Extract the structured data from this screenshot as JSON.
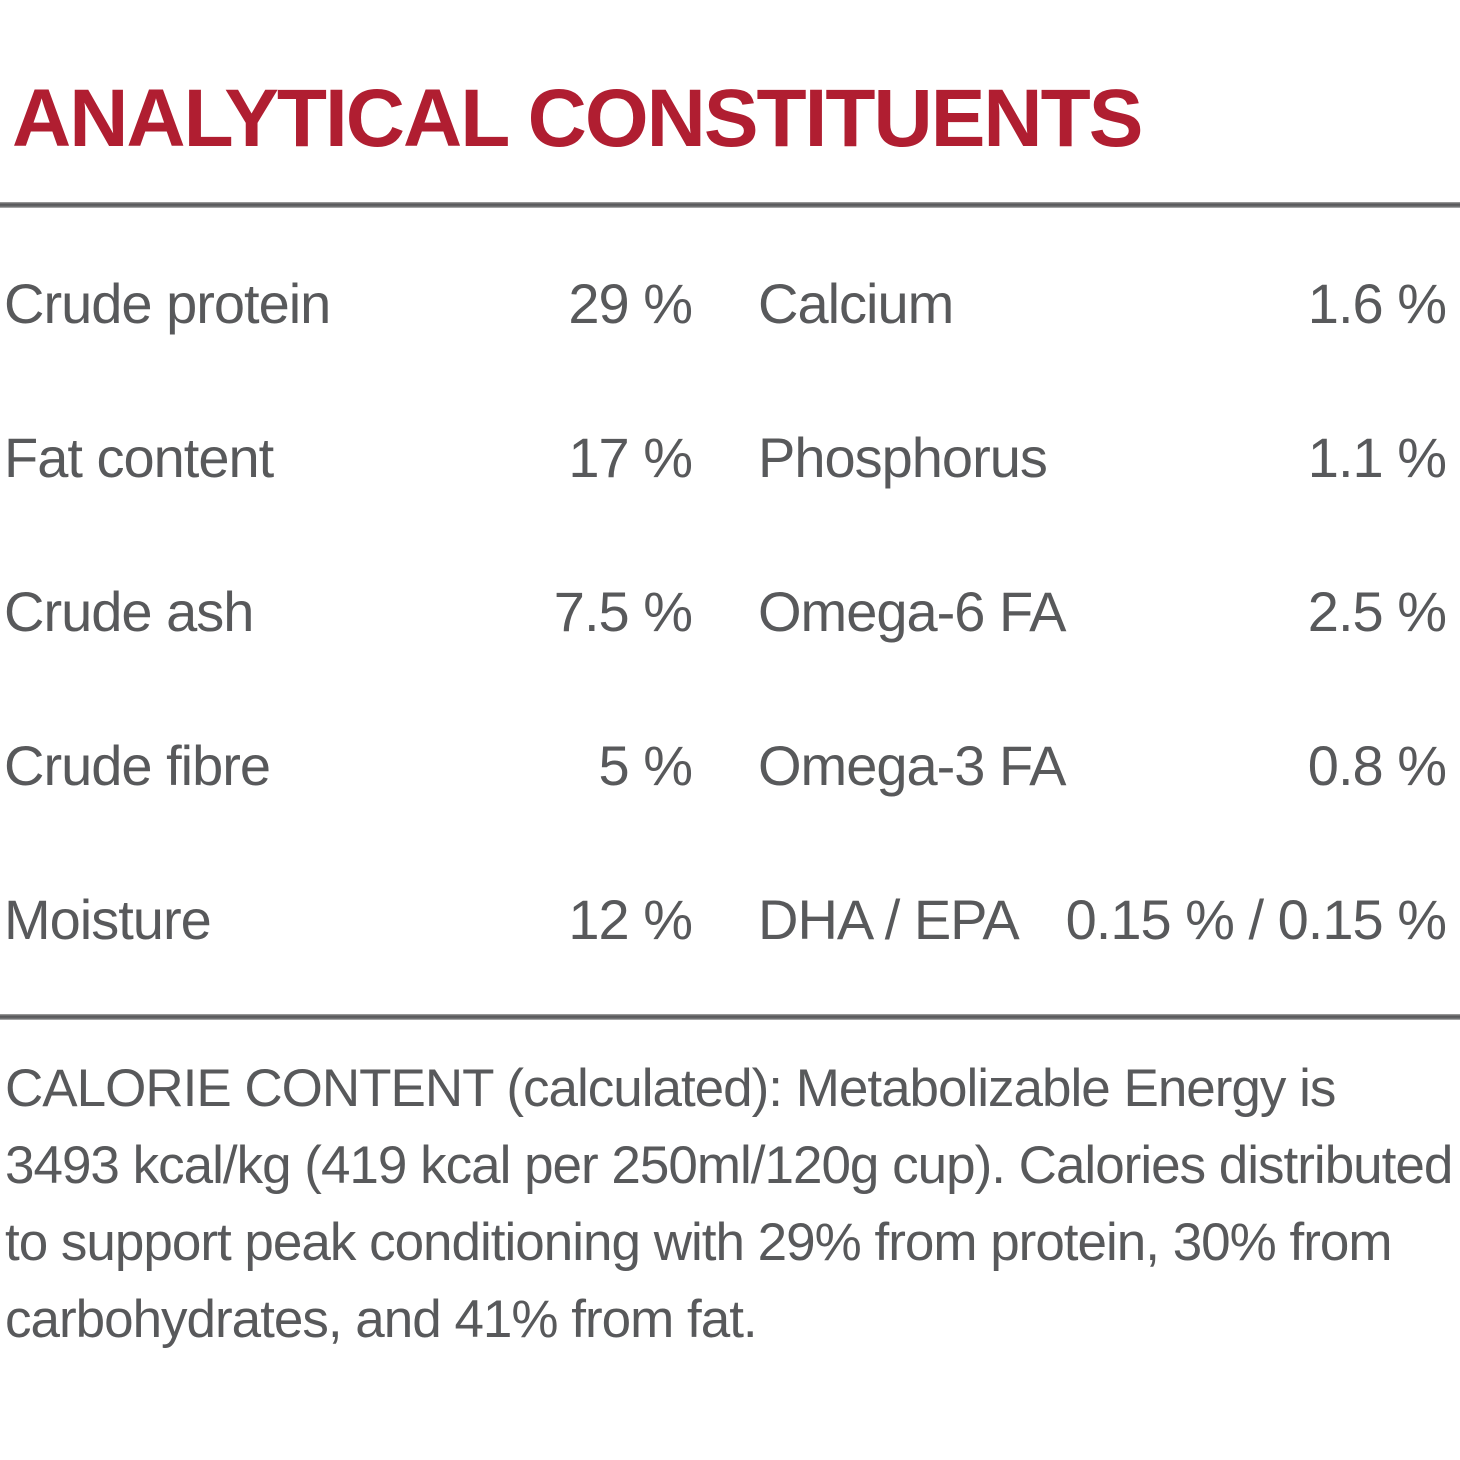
{
  "title": "ANALYTICAL CONSTITUENTS",
  "colors": {
    "accent_red": "#b01e31",
    "body_text": "#58595b",
    "divider_gray": "#636466",
    "background": "#ffffff"
  },
  "constituents": {
    "left": [
      {
        "label": "Crude protein",
        "value": "29 %"
      },
      {
        "label": "Fat content",
        "value": "17 %"
      },
      {
        "label": "Crude ash",
        "value": "7.5 %"
      },
      {
        "label": "Crude fibre",
        "value": "5 %"
      },
      {
        "label": "Moisture",
        "value": "12 %"
      }
    ],
    "right": [
      {
        "label": "Calcium",
        "value": "1.6 %"
      },
      {
        "label": "Phosphorus",
        "value": "1.1 %"
      },
      {
        "label": "Omega-6 FA",
        "value": "2.5 %"
      },
      {
        "label": "Omega-3 FA",
        "value": "0.8 %"
      },
      {
        "label": "DHA / EPA",
        "value": "0.15 % / 0.15 %"
      }
    ]
  },
  "calorie_content": {
    "text": "CALORIE CONTENT (calculated): Metabolizable Energy is 3493 kcal/kg (419 kcal per 250ml/120g cup). Calories distributed to support peak conditioning with 29% from protein, 30% from carbohydrates, and 41% from fat."
  }
}
